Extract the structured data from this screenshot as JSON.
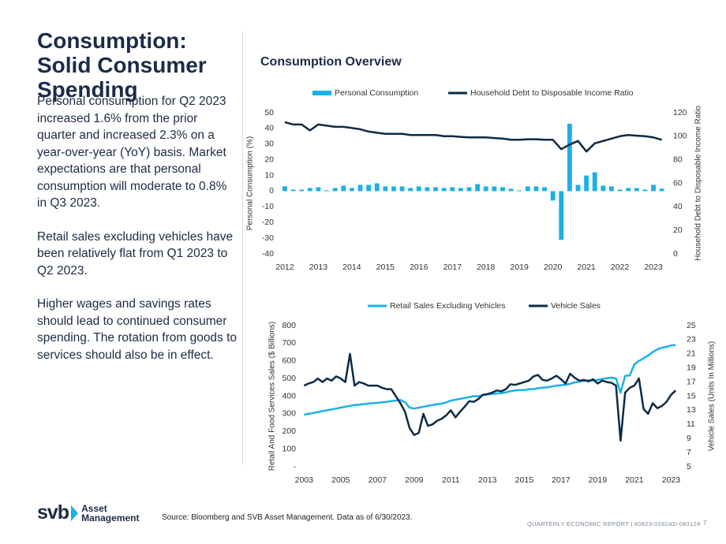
{
  "title": "Consumption: Solid Consumer Spending",
  "paragraphs": [
    "Personal consumption for Q2 2023 increased 1.6% from the prior quarter and increased 2.3% on a year-over-year (YoY) basis. Market expectations are that personal consumption will moderate to 0.8% in Q3 2023.",
    "Retail sales excluding vehicles have been relatively flat from Q1 2023 to Q2 2023.",
    "Higher wages and savings rates should lead to continued consumer spending. The rotation from goods to services should also be in effect."
  ],
  "section_title": "Consumption Overview",
  "source": "Source: Bloomberg and SVB Asset Management. Data as of 6/30/2023.",
  "footer": {
    "report": "QUARTERLY ECONOMIC REPORT | #0823-0282AD-083124",
    "page": "7"
  },
  "logo": {
    "brand": "svb",
    "line1": "Asset",
    "line2": "Management"
  },
  "chart_data": [
    {
      "type": "bar",
      "ylabel": "Personal Consumption (%)",
      "y2label": "Household Debt to Disposable Income Ratio",
      "x": [
        2012,
        2012.25,
        2012.5,
        2012.75,
        2013,
        2013.25,
        2013.5,
        2013.75,
        2014,
        2014.25,
        2014.5,
        2014.75,
        2015,
        2015.25,
        2015.5,
        2015.75,
        2016,
        2016.25,
        2016.5,
        2016.75,
        2017,
        2017.25,
        2017.5,
        2017.75,
        2018,
        2018.25,
        2018.5,
        2018.75,
        2019,
        2019.25,
        2019.5,
        2019.75,
        2020,
        2020.25,
        2020.5,
        2020.75,
        2021,
        2021.25,
        2021.5,
        2021.75,
        2022,
        2022.25,
        2022.5,
        2022.75,
        2023,
        2023.25
      ],
      "series": [
        {
          "name": "Personal Consumption",
          "type": "bar",
          "color": "#1ab0e8",
          "values": [
            3,
            1,
            1,
            2,
            2.5,
            0.5,
            2,
            3.5,
            2,
            4,
            4,
            5,
            3,
            3,
            3,
            2,
            3,
            2.5,
            2.5,
            2,
            2.5,
            2,
            2.5,
            4.5,
            3,
            3,
            2.5,
            1.5,
            0.5,
            3,
            3,
            2.5,
            -6,
            -31,
            43,
            4,
            10,
            12,
            3.5,
            3,
            1,
            2,
            2,
            1,
            4,
            1.6
          ]
        },
        {
          "name": "Household Debt to Disposable Income Ratio",
          "type": "line",
          "axis": "y2",
          "color": "#0b2a45",
          "values": [
            112,
            110,
            110,
            105,
            110,
            109,
            108,
            108,
            107,
            106,
            104,
            103,
            102,
            102,
            102,
            101,
            101,
            101,
            101,
            100,
            100,
            99.5,
            99,
            99,
            99,
            98.5,
            98,
            97,
            97,
            97.5,
            97.5,
            97,
            97,
            89,
            93,
            96,
            87,
            94,
            96,
            98,
            100,
            101,
            100.5,
            100,
            99,
            97
          ]
        }
      ],
      "xlim": [
        2011.86,
        2023.4
      ],
      "xticks": [
        2012,
        2013,
        2014,
        2015,
        2016,
        2017,
        2018,
        2019,
        2020,
        2021,
        2022,
        2023
      ],
      "ylim": [
        -40,
        50
      ],
      "yticks": [
        -40,
        -30,
        -20,
        -10,
        0,
        10,
        20,
        30,
        40,
        50
      ],
      "y2lim": [
        0,
        120
      ],
      "y2ticks": [
        0,
        20,
        40,
        60,
        80,
        100,
        120
      ],
      "grid": false,
      "legend": "top"
    },
    {
      "type": "line",
      "ylabel": "Retail And Food Services Sales ($ Billions)",
      "y2label": "Vehicle Sales (Units In  Millions)",
      "x": [
        2003,
        2003.25,
        2003.5,
        2003.75,
        2004,
        2004.25,
        2004.5,
        2004.75,
        2005,
        2005.25,
        2005.5,
        2005.75,
        2006,
        2006.25,
        2006.5,
        2006.75,
        2007,
        2007.25,
        2007.5,
        2007.75,
        2008,
        2008.25,
        2008.5,
        2008.75,
        2009,
        2009.25,
        2009.5,
        2009.75,
        2010,
        2010.25,
        2010.5,
        2010.75,
        2011,
        2011.25,
        2011.5,
        2011.75,
        2012,
        2012.25,
        2012.5,
        2012.75,
        2013,
        2013.25,
        2013.5,
        2013.75,
        2014,
        2014.25,
        2014.5,
        2014.75,
        2015,
        2015.25,
        2015.5,
        2015.75,
        2016,
        2016.25,
        2016.5,
        2016.75,
        2017,
        2017.25,
        2017.5,
        2017.75,
        2018,
        2018.25,
        2018.5,
        2018.75,
        2019,
        2019.25,
        2019.5,
        2019.75,
        2020,
        2020.25,
        2020.5,
        2020.75,
        2021,
        2021.25,
        2021.5,
        2021.75,
        2022,
        2022.25,
        2022.5,
        2022.75,
        2023,
        2023.25
      ],
      "series": [
        {
          "name": "Retail Sales Excluding Vehicles",
          "color": "#1ab0e8",
          "values": [
            295,
            300,
            305,
            310,
            315,
            320,
            325,
            330,
            335,
            340,
            345,
            350,
            352,
            355,
            358,
            360,
            362,
            365,
            368,
            372,
            375,
            378,
            365,
            335,
            330,
            335,
            340,
            345,
            350,
            355,
            358,
            365,
            375,
            380,
            385,
            390,
            395,
            400,
            400,
            405,
            410,
            412,
            415,
            418,
            422,
            428,
            432,
            435,
            435,
            440,
            440,
            445,
            448,
            450,
            455,
            460,
            462,
            465,
            470,
            478,
            482,
            487,
            490,
            488,
            492,
            498,
            502,
            505,
            500,
            420,
            515,
            518,
            580,
            600,
            615,
            630,
            650,
            665,
            675,
            680,
            688,
            690
          ]
        },
        {
          "name": "Vehicle Sales",
          "axis": "y2",
          "color": "#0d2b45",
          "values": [
            16.5,
            16.8,
            17,
            17.5,
            17,
            17.5,
            17.2,
            17.8,
            17.5,
            17,
            21,
            16.5,
            17,
            16.8,
            16.5,
            16.5,
            16.5,
            16.2,
            16,
            16,
            15,
            14,
            12.8,
            10.5,
            9.5,
            9.8,
            12.5,
            10.8,
            11,
            11.5,
            11.8,
            12.3,
            13,
            12,
            12.8,
            13.5,
            14.3,
            14.2,
            14.6,
            15.2,
            15.3,
            15.5,
            15.8,
            15.7,
            16,
            16.7,
            16.6,
            16.8,
            17,
            17.2,
            17.8,
            18,
            17.3,
            17.2,
            17.5,
            17.9,
            17.4,
            16.8,
            18.2,
            17.6,
            17.2,
            17.3,
            17.1,
            17.4,
            16.8,
            17.2,
            17,
            16.9,
            16.5,
            8.7,
            15.5,
            16.2,
            16.5,
            17.5,
            13.2,
            12.5,
            14,
            13.3,
            13.6,
            14.2,
            15.2,
            15.8
          ]
        }
      ],
      "xlim": [
        2002.9,
        2023.5
      ],
      "xticks": [
        2003,
        2005,
        2007,
        2009,
        2011,
        2013,
        2015,
        2017,
        2019,
        2021,
        2023
      ],
      "ylim": [
        0,
        800
      ],
      "yticks": [
        {
          "value": 0,
          "label": "-"
        },
        100,
        200,
        300,
        400,
        500,
        600,
        700,
        800
      ],
      "y2lim": [
        5,
        25
      ],
      "y2ticks": [
        5,
        7,
        9,
        11,
        13,
        15,
        17,
        19,
        21,
        23,
        25
      ],
      "grid": false,
      "legend": "top"
    }
  ]
}
